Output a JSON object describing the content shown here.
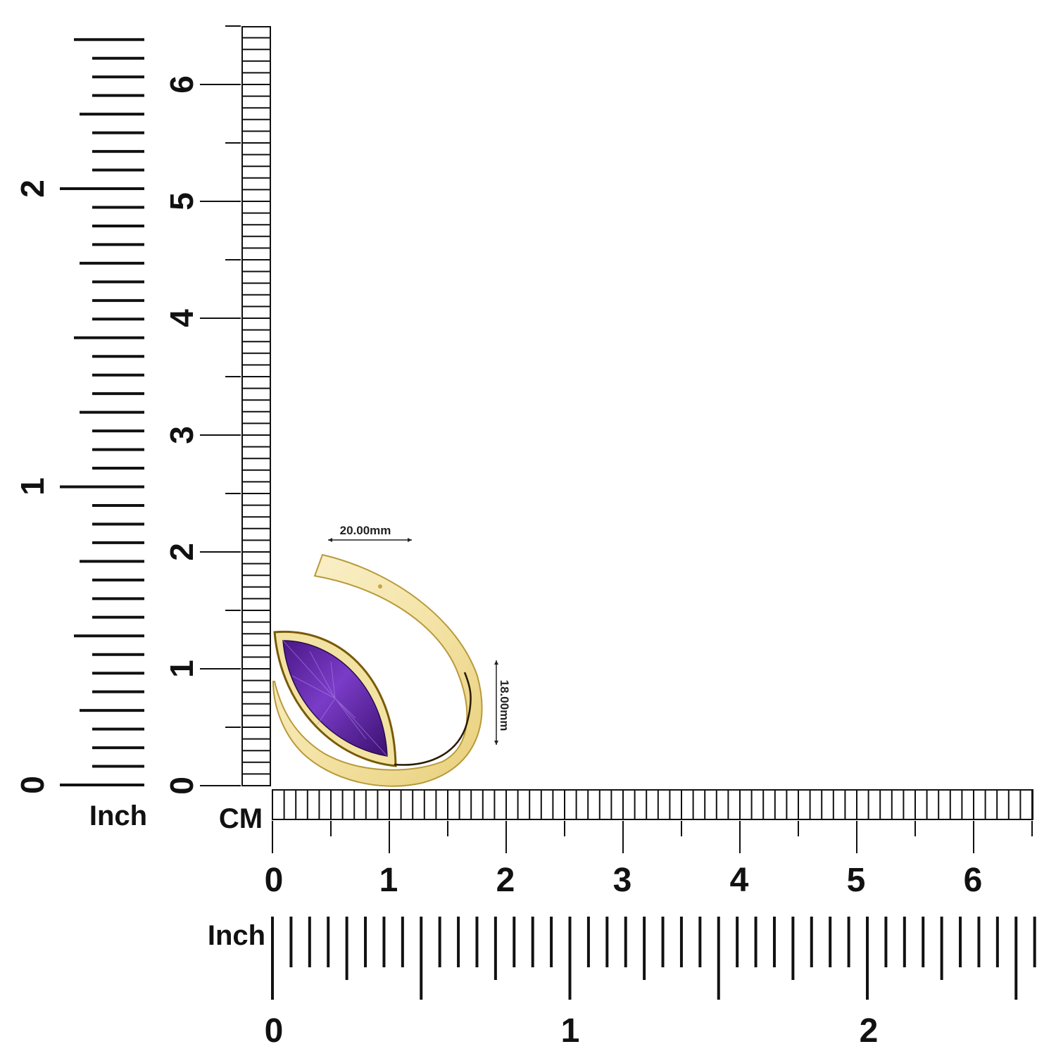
{
  "rulers": {
    "cm_unit": "CM",
    "inch_unit": "Inch",
    "left_inch_labels": [
      "0",
      "1",
      "2"
    ],
    "left_cm_labels": [
      "0",
      "1",
      "2",
      "3",
      "4",
      "5",
      "6"
    ],
    "bottom_cm_labels": [
      "0",
      "1",
      "2",
      "3",
      "4",
      "5",
      "6"
    ],
    "bottom_inch_labels": [
      "0",
      "1",
      "2"
    ]
  },
  "dimensions": {
    "width": "20.00mm",
    "height": "18.00mm"
  },
  "product": {
    "stone": "marquise amethyst",
    "metal": "yellow gold",
    "colors": {
      "stone": "#6b2fb3",
      "metal": "#f4e4a8",
      "outline": "#8a6a10"
    }
  }
}
